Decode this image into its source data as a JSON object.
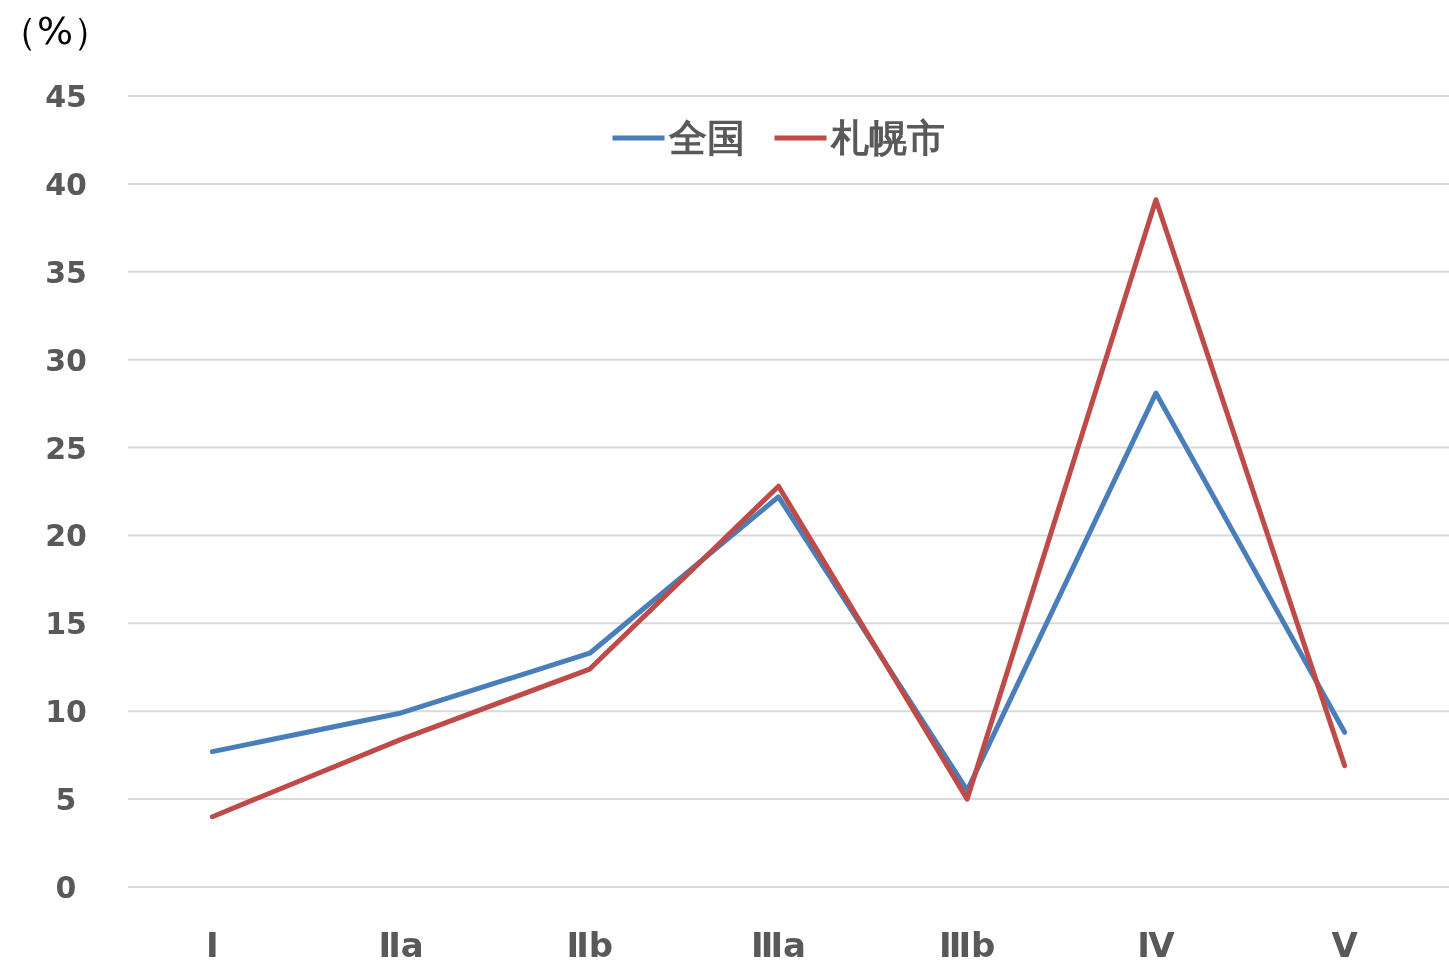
{
  "chart_data": {
    "type": "line",
    "ylabel": "（%）",
    "categories": [
      "Ⅰ",
      "Ⅱa",
      "Ⅱb",
      "Ⅲa",
      "Ⅲb",
      "Ⅳ",
      "Ⅴ"
    ],
    "series": [
      {
        "name": "全国",
        "color": "#4a7ebb",
        "values": [
          7.7,
          9.9,
          13.3,
          22.2,
          5.5,
          28.1,
          8.8
        ]
      },
      {
        "name": "札幌市",
        "color": "#be4b48",
        "values": [
          4.0,
          8.4,
          12.4,
          22.8,
          5.0,
          39.1,
          6.9
        ]
      }
    ],
    "ylim": [
      0,
      45
    ],
    "yticks": [
      0,
      5,
      10,
      15,
      20,
      25,
      30,
      35,
      40,
      45
    ],
    "grid": "y",
    "legend": "top",
    "marker": "none",
    "line_style": "solid"
  }
}
